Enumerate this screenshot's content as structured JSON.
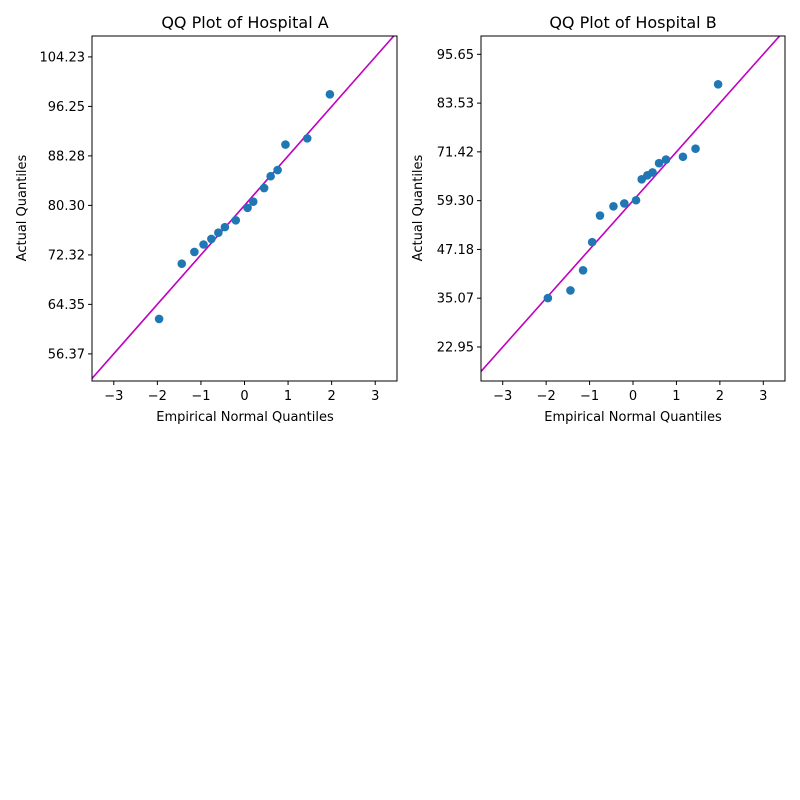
{
  "colors": {
    "point": "#1f77b4",
    "reference_line": "#bf00bf",
    "axes": "#000000",
    "background": "#ffffff"
  },
  "chart_data": [
    {
      "type": "scatter",
      "title": "QQ Plot of Hospital A",
      "xlabel": "Empirical Normal Quantiles",
      "ylabel": "Actual Quantiles",
      "xlim": [
        -3.5,
        3.5
      ],
      "ylim": [
        52.0,
        107.6
      ],
      "xticks": [
        -3,
        -2,
        -1,
        0,
        1,
        2,
        3
      ],
      "xtick_labels": [
        "−3",
        "−2",
        "−1",
        "0",
        "1",
        "2",
        "3"
      ],
      "yticks": [
        56.37,
        64.35,
        72.32,
        80.3,
        88.28,
        96.25,
        104.23
      ],
      "ytick_labels": [
        "56.37",
        "64.35",
        "72.32",
        "80.30",
        "88.28",
        "96.25",
        "104.23"
      ],
      "grid": false,
      "reference_line": {
        "slope": 7.97,
        "intercept": 80.3
      },
      "series": [
        {
          "x": [
            -1.96,
            -1.44,
            -1.15,
            -0.94,
            -0.76,
            -0.6,
            -0.45,
            -0.2,
            0.07,
            0.2,
            0.45,
            0.6,
            0.76,
            0.94,
            1.44,
            1.96
          ],
          "y": [
            62.0,
            70.9,
            72.8,
            74.0,
            74.9,
            75.9,
            76.8,
            77.9,
            79.9,
            80.9,
            83.1,
            85.0,
            86.0,
            90.1,
            91.1,
            98.2
          ]
        }
      ]
    },
    {
      "type": "scatter",
      "title": "QQ Plot of Hospital B",
      "xlabel": "Empirical Normal Quantiles",
      "ylabel": "Actual Quantiles",
      "xlim": [
        -3.5,
        3.5
      ],
      "ylim": [
        14.5,
        100.2
      ],
      "xticks": [
        -3,
        -2,
        -1,
        0,
        1,
        2,
        3
      ],
      "xtick_labels": [
        "−3",
        "−2",
        "−1",
        "0",
        "1",
        "2",
        "3"
      ],
      "yticks": [
        22.95,
        35.07,
        47.18,
        59.3,
        71.42,
        83.53,
        95.65
      ],
      "ytick_labels": [
        "22.95",
        "35.07",
        "47.18",
        "59.30",
        "71.42",
        "83.53",
        "95.65"
      ],
      "grid": false,
      "reference_line": {
        "slope": 12.12,
        "intercept": 59.3
      },
      "series": [
        {
          "x": [
            -1.96,
            -1.44,
            -1.15,
            -0.94,
            -0.76,
            -0.45,
            -0.2,
            0.07,
            0.2,
            0.33,
            0.45,
            0.6,
            0.76,
            1.15,
            1.44,
            1.96
          ],
          "y": [
            35.1,
            37.0,
            42.0,
            49.0,
            55.6,
            57.9,
            58.6,
            59.4,
            64.6,
            65.6,
            66.3,
            68.6,
            69.5,
            70.2,
            72.2,
            88.2
          ]
        }
      ]
    }
  ]
}
